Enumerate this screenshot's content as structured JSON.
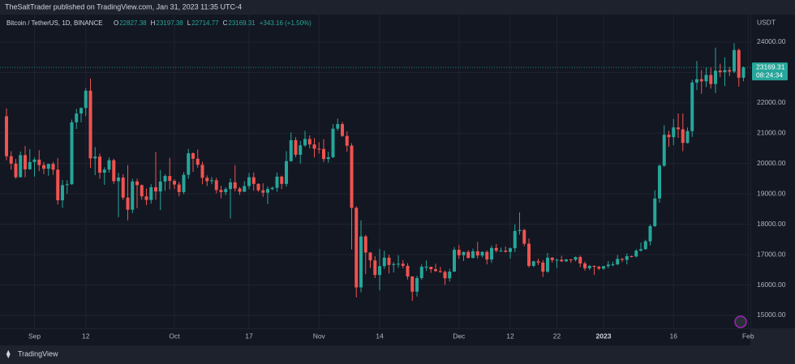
{
  "header": "TheSaltTrader published on TradingView.com, Jan 31, 2023 11:35 UTC-4",
  "footer": "TradingView",
  "chart_data": {
    "type": "candlestick",
    "title": "Bitcoin / TetherUS, 1D, BINANCE",
    "ohlc_labels": [
      "O",
      "H",
      "L",
      "C"
    ],
    "change_label": "+343.16 (+1.50%)",
    "y_axis_unit": "USDT",
    "countdown": "08:24:34",
    "up_color": "#26a69a",
    "down_color": "#ef5350",
    "grid": true,
    "ylim": [
      14572,
      24908
    ],
    "yticks": [
      {
        "value": 15000,
        "label": "15000.00"
      },
      {
        "value": 16000,
        "label": "16000.00"
      },
      {
        "value": 17000,
        "label": "17000.00"
      },
      {
        "value": 18000,
        "label": "18000.00"
      },
      {
        "value": 19000,
        "label": "19000.00"
      },
      {
        "value": 20000,
        "label": "20000.00"
      },
      {
        "value": 21000,
        "label": "21000.00"
      },
      {
        "value": 22000,
        "label": "22000.00"
      },
      {
        "value": 23000,
        "label": "23000.00"
      },
      {
        "value": 24000,
        "label": "24000.00"
      }
    ],
    "xticks": [
      {
        "value": "2022-09-01",
        "label": "Sep"
      },
      {
        "value": "2022-09-12",
        "label": "12"
      },
      {
        "value": "2022-10-01",
        "label": "Oct"
      },
      {
        "value": "2022-10-17",
        "label": "17"
      },
      {
        "value": "2022-11-01",
        "label": "Nov"
      },
      {
        "value": "2022-11-14",
        "label": "14"
      },
      {
        "value": "2022-12-01",
        "label": "Dec"
      },
      {
        "value": "2022-12-12",
        "label": "12"
      },
      {
        "value": "2022-12-22",
        "label": "22"
      },
      {
        "value": "2023-01-01",
        "label": "2023"
      },
      {
        "value": "2023-01-16",
        "label": "16"
      },
      {
        "value": "2023-02-01",
        "label": "Feb"
      }
    ],
    "x": [
      "2022-08-26",
      "2022-08-27",
      "2022-08-28",
      "2022-08-29",
      "2022-08-30",
      "2022-08-31",
      "2022-09-01",
      "2022-09-02",
      "2022-09-03",
      "2022-09-04",
      "2022-09-05",
      "2022-09-06",
      "2022-09-07",
      "2022-09-08",
      "2022-09-09",
      "2022-09-10",
      "2022-09-11",
      "2022-09-12",
      "2022-09-13",
      "2022-09-14",
      "2022-09-15",
      "2022-09-16",
      "2022-09-17",
      "2022-09-18",
      "2022-09-19",
      "2022-09-20",
      "2022-09-21",
      "2022-09-22",
      "2022-09-23",
      "2022-09-24",
      "2022-09-25",
      "2022-09-26",
      "2022-09-27",
      "2022-09-28",
      "2022-09-29",
      "2022-09-30",
      "2022-10-01",
      "2022-10-02",
      "2022-10-03",
      "2022-10-04",
      "2022-10-05",
      "2022-10-06",
      "2022-10-07",
      "2022-10-08",
      "2022-10-09",
      "2022-10-10",
      "2022-10-11",
      "2022-10-12",
      "2022-10-13",
      "2022-10-14",
      "2022-10-15",
      "2022-10-16",
      "2022-10-17",
      "2022-10-18",
      "2022-10-19",
      "2022-10-20",
      "2022-10-21",
      "2022-10-22",
      "2022-10-23",
      "2022-10-24",
      "2022-10-25",
      "2022-10-26",
      "2022-10-27",
      "2022-10-28",
      "2022-10-29",
      "2022-10-30",
      "2022-10-31",
      "2022-11-01",
      "2022-11-02",
      "2022-11-03",
      "2022-11-04",
      "2022-11-05",
      "2022-11-06",
      "2022-11-07",
      "2022-11-08",
      "2022-11-09",
      "2022-11-10",
      "2022-11-11",
      "2022-11-12",
      "2022-11-13",
      "2022-11-14",
      "2022-11-15",
      "2022-11-16",
      "2022-11-17",
      "2022-11-18",
      "2022-11-19",
      "2022-11-20",
      "2022-11-21",
      "2022-11-22",
      "2022-11-23",
      "2022-11-24",
      "2022-11-25",
      "2022-11-26",
      "2022-11-27",
      "2022-11-28",
      "2022-11-29",
      "2022-11-30",
      "2022-12-01",
      "2022-12-02",
      "2022-12-03",
      "2022-12-04",
      "2022-12-05",
      "2022-12-06",
      "2022-12-07",
      "2022-12-08",
      "2022-12-09",
      "2022-12-10",
      "2022-12-11",
      "2022-12-12",
      "2022-12-13",
      "2022-12-14",
      "2022-12-15",
      "2022-12-16",
      "2022-12-17",
      "2022-12-18",
      "2022-12-19",
      "2022-12-20",
      "2022-12-21",
      "2022-12-22",
      "2022-12-23",
      "2022-12-24",
      "2022-12-25",
      "2022-12-26",
      "2022-12-27",
      "2022-12-28",
      "2022-12-29",
      "2022-12-30",
      "2022-12-31",
      "2023-01-01",
      "2023-01-02",
      "2023-01-03",
      "2023-01-04",
      "2023-01-05",
      "2023-01-06",
      "2023-01-07",
      "2023-01-08",
      "2023-01-09",
      "2023-01-10",
      "2023-01-11",
      "2023-01-12",
      "2023-01-13",
      "2023-01-14",
      "2023-01-15",
      "2023-01-16",
      "2023-01-17",
      "2023-01-18",
      "2023-01-19",
      "2023-01-20",
      "2023-01-21",
      "2023-01-22",
      "2023-01-23",
      "2023-01-24",
      "2023-01-25",
      "2023-01-26",
      "2023-01-27",
      "2023-01-28",
      "2023-01-29",
      "2023-01-30",
      "2023-01-31"
    ],
    "candles": [
      [
        21560,
        21815,
        20110,
        20241
      ],
      [
        20241,
        20410,
        19800,
        19999
      ],
      [
        19999,
        20150,
        19500,
        19550
      ],
      [
        19550,
        20400,
        19550,
        20280
      ],
      [
        20280,
        20580,
        19550,
        19810
      ],
      [
        19810,
        20480,
        19800,
        20050
      ],
      [
        20050,
        20200,
        19570,
        20130
      ],
      [
        20130,
        20440,
        19750,
        19950
      ],
      [
        19950,
        20050,
        19650,
        19830
      ],
      [
        19830,
        20000,
        19600,
        19990
      ],
      [
        19990,
        20050,
        19630,
        19800
      ],
      [
        19800,
        20180,
        18650,
        18790
      ],
      [
        18790,
        19460,
        18540,
        19290
      ],
      [
        19290,
        19450,
        19000,
        19320
      ],
      [
        19320,
        21450,
        19300,
        21360
      ],
      [
        21360,
        21800,
        21140,
        21650
      ],
      [
        21650,
        21850,
        21360,
        21830
      ],
      [
        21830,
        22490,
        21560,
        22400
      ],
      [
        22400,
        22800,
        19860,
        20170
      ],
      [
        20170,
        20540,
        19620,
        20230
      ],
      [
        20230,
        20330,
        19500,
        19700
      ],
      [
        19700,
        19880,
        19300,
        19800
      ],
      [
        19800,
        20200,
        19700,
        20110
      ],
      [
        20110,
        20160,
        19330,
        19420
      ],
      [
        19420,
        19690,
        18230,
        19540
      ],
      [
        19540,
        19650,
        18800,
        18880
      ],
      [
        18880,
        19950,
        18130,
        18480
      ],
      [
        18480,
        19500,
        18360,
        19410
      ],
      [
        19410,
        19500,
        18530,
        19290
      ],
      [
        19290,
        19310,
        18810,
        18920
      ],
      [
        18920,
        19180,
        18630,
        18800
      ],
      [
        18800,
        19320,
        18680,
        19220
      ],
      [
        19220,
        20380,
        18810,
        19080
      ],
      [
        19080,
        19790,
        18470,
        19410
      ],
      [
        19410,
        19650,
        19100,
        19590
      ],
      [
        19590,
        20190,
        19150,
        19430
      ],
      [
        19430,
        19480,
        19160,
        19310
      ],
      [
        19310,
        19400,
        18920,
        19060
      ],
      [
        19060,
        19720,
        19000,
        19630
      ],
      [
        19630,
        20480,
        19500,
        20340
      ],
      [
        20340,
        20370,
        19730,
        20160
      ],
      [
        20160,
        20460,
        19860,
        19960
      ],
      [
        19960,
        20060,
        19320,
        19530
      ],
      [
        19530,
        19610,
        19260,
        19420
      ],
      [
        19420,
        19560,
        19320,
        19450
      ],
      [
        19450,
        19530,
        19020,
        19130
      ],
      [
        19130,
        19270,
        18860,
        19060
      ],
      [
        19060,
        19220,
        18960,
        19160
      ],
      [
        19160,
        19510,
        18190,
        19380
      ],
      [
        19380,
        19950,
        19080,
        19180
      ],
      [
        19180,
        19230,
        18970,
        19070
      ],
      [
        19070,
        19420,
        19070,
        19260
      ],
      [
        19260,
        19690,
        19160,
        19550
      ],
      [
        19550,
        19710,
        19100,
        19330
      ],
      [
        19330,
        19350,
        19070,
        19120
      ],
      [
        19120,
        19350,
        18900,
        19040
      ],
      [
        19040,
        19250,
        18660,
        19160
      ],
      [
        19160,
        19250,
        19120,
        19200
      ],
      [
        19200,
        19700,
        19070,
        19570
      ],
      [
        19570,
        19600,
        19160,
        19330
      ],
      [
        19330,
        20410,
        19240,
        20080
      ],
      [
        20080,
        21020,
        20060,
        20770
      ],
      [
        20770,
        20870,
        20210,
        20290
      ],
      [
        20290,
        20750,
        20000,
        20600
      ],
      [
        20600,
        21080,
        20550,
        20810
      ],
      [
        20810,
        20930,
        20500,
        20630
      ],
      [
        20630,
        20840,
        20200,
        20490
      ],
      [
        20490,
        20700,
        20330,
        20480
      ],
      [
        20480,
        20800,
        20050,
        20150
      ],
      [
        20150,
        20390,
        20030,
        20210
      ],
      [
        20210,
        21300,
        20180,
        21150
      ],
      [
        21150,
        21480,
        21080,
        21300
      ],
      [
        21300,
        21370,
        20880,
        20910
      ],
      [
        20910,
        21060,
        20390,
        20590
      ],
      [
        20590,
        20670,
        17170,
        18540
      ],
      [
        18540,
        18590,
        15590,
        15920
      ],
      [
        15920,
        18130,
        15760,
        17600
      ],
      [
        17600,
        17650,
        16360,
        17070
      ],
      [
        17070,
        17080,
        16560,
        16810
      ],
      [
        16810,
        16950,
        16230,
        16330
      ],
      [
        16330,
        17190,
        15820,
        16620
      ],
      [
        16620,
        17130,
        16530,
        16900
      ],
      [
        16900,
        17000,
        16380,
        16660
      ],
      [
        16660,
        16750,
        16410,
        16690
      ],
      [
        16690,
        16980,
        16570,
        16700
      ],
      [
        16700,
        16820,
        16550,
        16630
      ],
      [
        16630,
        16720,
        16180,
        16280
      ],
      [
        16280,
        16290,
        15480,
        15780
      ],
      [
        15780,
        16300,
        15620,
        16230
      ],
      [
        16230,
        16680,
        16170,
        16600
      ],
      [
        16600,
        16810,
        16460,
        16600
      ],
      [
        16600,
        16600,
        16400,
        16520
      ],
      [
        16520,
        16700,
        16430,
        16460
      ],
      [
        16460,
        16600,
        16400,
        16430
      ],
      [
        16430,
        16480,
        16000,
        16220
      ],
      [
        16220,
        16530,
        16110,
        16440
      ],
      [
        16440,
        17250,
        16430,
        17160
      ],
      [
        17160,
        17320,
        16860,
        16980
      ],
      [
        16980,
        17100,
        16790,
        17090
      ],
      [
        17090,
        17150,
        16880,
        16890
      ],
      [
        16890,
        17200,
        16880,
        17110
      ],
      [
        17110,
        17420,
        16870,
        16970
      ],
      [
        16970,
        17110,
        16910,
        17090
      ],
      [
        17090,
        17140,
        16680,
        16840
      ],
      [
        16840,
        17300,
        16730,
        17220
      ],
      [
        17220,
        17350,
        17070,
        17130
      ],
      [
        17130,
        17230,
        17090,
        17130
      ],
      [
        17130,
        17270,
        17070,
        17090
      ],
      [
        17090,
        17240,
        16870,
        17210
      ],
      [
        17210,
        18000,
        17080,
        17780
      ],
      [
        17780,
        18390,
        17660,
        17810
      ],
      [
        17810,
        17850,
        17280,
        17360
      ],
      [
        17360,
        17530,
        16580,
        16630
      ],
      [
        16630,
        16800,
        16590,
        16780
      ],
      [
        16780,
        16870,
        16660,
        16740
      ],
      [
        16740,
        16820,
        16260,
        16440
      ],
      [
        16440,
        17060,
        16400,
        16900
      ],
      [
        16900,
        16920,
        16740,
        16820
      ],
      [
        16820,
        16870,
        16560,
        16830
      ],
      [
        16830,
        16960,
        16760,
        16780
      ],
      [
        16780,
        16860,
        16760,
        16840
      ],
      [
        16840,
        16860,
        16730,
        16830
      ],
      [
        16830,
        16940,
        16780,
        16920
      ],
      [
        16920,
        16970,
        16590,
        16710
      ],
      [
        16710,
        16780,
        16470,
        16550
      ],
      [
        16550,
        16660,
        16490,
        16630
      ],
      [
        16630,
        16640,
        16330,
        16600
      ],
      [
        16600,
        16630,
        16490,
        16540
      ],
      [
        16540,
        16630,
        16500,
        16620
      ],
      [
        16620,
        16790,
        16550,
        16670
      ],
      [
        16670,
        16770,
        16620,
        16680
      ],
      [
        16680,
        16990,
        16650,
        16860
      ],
      [
        16860,
        16890,
        16760,
        16830
      ],
      [
        16830,
        17040,
        16680,
        16950
      ],
      [
        16950,
        16970,
        16910,
        16940
      ],
      [
        16940,
        17180,
        16910,
        17130
      ],
      [
        17130,
        17400,
        17100,
        17180
      ],
      [
        17180,
        17490,
        17160,
        17440
      ],
      [
        17440,
        17990,
        17310,
        17940
      ],
      [
        17940,
        19120,
        17910,
        18850
      ],
      [
        18850,
        19980,
        18710,
        19930
      ],
      [
        19930,
        21260,
        19890,
        20950
      ],
      [
        20950,
        21080,
        20550,
        20870
      ],
      [
        20870,
        21470,
        20600,
        21190
      ],
      [
        21190,
        21650,
        20850,
        21130
      ],
      [
        21130,
        21650,
        20410,
        20680
      ],
      [
        20680,
        21190,
        20660,
        21070
      ],
      [
        21070,
        22760,
        20880,
        22670
      ],
      [
        22670,
        23380,
        22420,
        22780
      ],
      [
        22780,
        23080,
        22300,
        22710
      ],
      [
        22710,
        23170,
        22520,
        22920
      ],
      [
        22920,
        23160,
        22470,
        22620
      ],
      [
        22620,
        23820,
        22320,
        23060
      ],
      [
        23060,
        23290,
        22850,
        23010
      ],
      [
        23010,
        23500,
        22550,
        23080
      ],
      [
        23080,
        23180,
        22880,
        23030
      ],
      [
        23030,
        23960,
        22980,
        23740
      ],
      [
        23740,
        23790,
        22540,
        22830
      ],
      [
        22827.38,
        23197.38,
        22714.77,
        23169.31
      ]
    ]
  }
}
